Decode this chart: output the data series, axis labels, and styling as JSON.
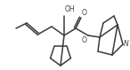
{
  "bg_color": "#ffffff",
  "line_color": "#3a3a3a",
  "lw": 1.1,
  "oh_label": "OH",
  "o_label": "O",
  "n_label": "N",
  "figw": 1.46,
  "figh": 0.79,
  "dpi": 100,
  "xlim": [
    0,
    146
  ],
  "ylim": [
    0,
    79
  ]
}
